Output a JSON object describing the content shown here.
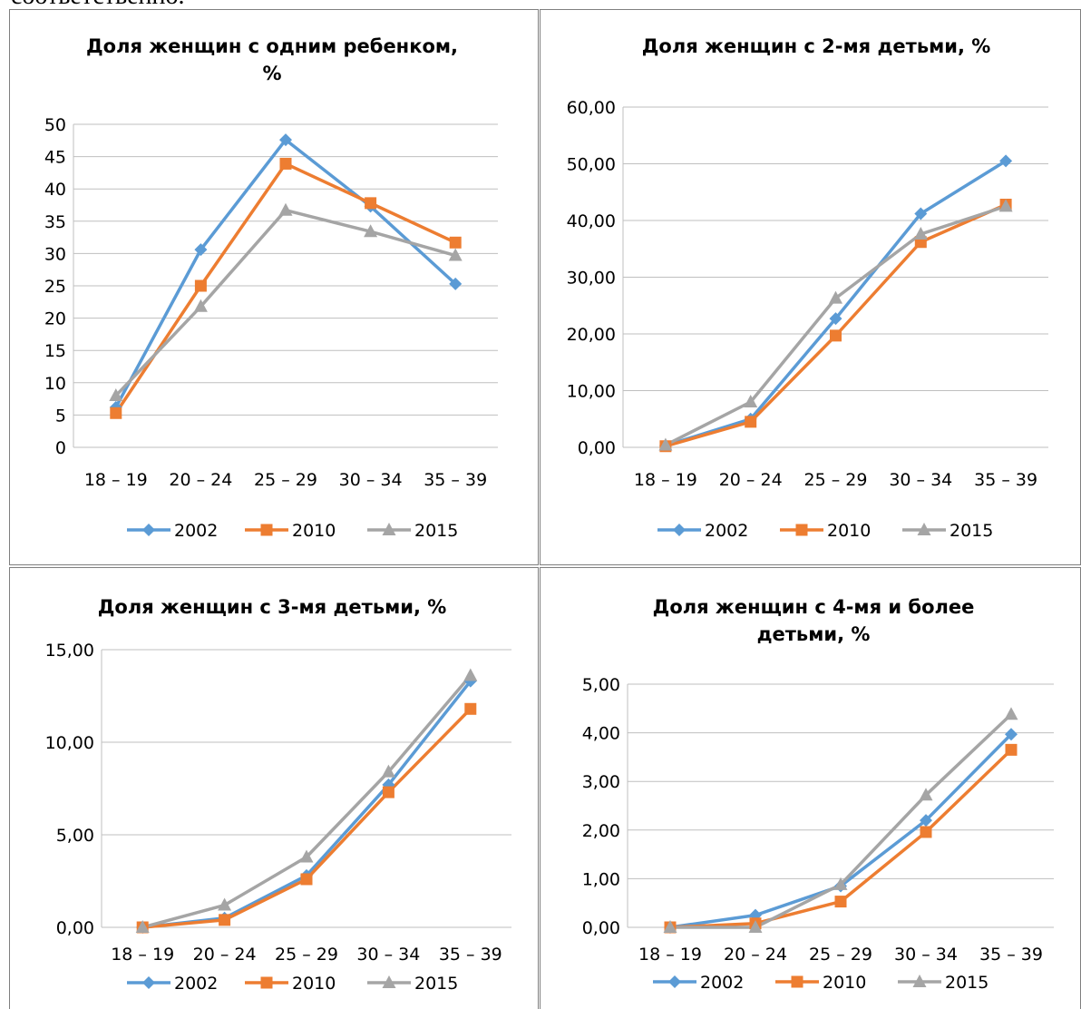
{
  "page_top_text": "соответственно.",
  "colors": {
    "2002": "#5b9bd5",
    "2010": "#ed7d31",
    "2015": "#a5a5a5"
  },
  "chart_data": [
    {
      "type": "line",
      "title_lines": [
        "Доля женщин с одним ребенком,",
        "%"
      ],
      "categories": [
        "18 – 19",
        "20 – 24",
        "25 – 29",
        "30 – 34",
        "35 – 39"
      ],
      "yticks": [
        "0",
        "5",
        "10",
        "15",
        "20",
        "25",
        "30",
        "35",
        "40",
        "45",
        "50"
      ],
      "ylim": [
        0,
        50
      ],
      "series": [
        {
          "name": "2002",
          "values": [
            6.2,
            30.6,
            47.6,
            37.3,
            25.3
          ]
        },
        {
          "name": "2010",
          "values": [
            5.3,
            25.0,
            43.9,
            37.8,
            31.7
          ]
        },
        {
          "name": "2015",
          "values": [
            8.0,
            21.8,
            36.7,
            33.4,
            29.7
          ]
        }
      ],
      "legend_position": "bottom"
    },
    {
      "type": "line",
      "title_lines": [
        "Доля женщин с 2-мя детьми, %"
      ],
      "categories": [
        "18 – 19",
        "20 – 24",
        "25 – 29",
        "30 – 34",
        "35 – 39"
      ],
      "yticks": [
        "0,00",
        "10,00",
        "20,00",
        "30,00",
        "40,00",
        "50,00",
        "60,00"
      ],
      "ylim": [
        0,
        60
      ],
      "series": [
        {
          "name": "2002",
          "values": [
            0.3,
            5.0,
            22.7,
            41.2,
            50.5
          ]
        },
        {
          "name": "2010",
          "values": [
            0.2,
            4.5,
            19.7,
            36.2,
            42.8
          ]
        },
        {
          "name": "2015",
          "values": [
            0.4,
            8.0,
            26.3,
            37.6,
            42.5
          ]
        }
      ],
      "legend_position": "bottom"
    },
    {
      "type": "line",
      "title_lines": [
        "Доля женщин с 3-мя детьми, %"
      ],
      "categories": [
        "18 – 19",
        "20 – 24",
        "25 – 29",
        "30 – 34",
        "35 – 39"
      ],
      "yticks": [
        "0,00",
        "5,00",
        "10,00",
        "15,00"
      ],
      "ylim": [
        0,
        15
      ],
      "series": [
        {
          "name": "2002",
          "values": [
            0.0,
            0.5,
            2.8,
            7.7,
            13.3
          ]
        },
        {
          "name": "2010",
          "values": [
            0.0,
            0.4,
            2.6,
            7.3,
            11.8
          ]
        },
        {
          "name": "2015",
          "values": [
            0.0,
            1.2,
            3.8,
            8.4,
            13.6
          ]
        }
      ],
      "legend_position": "bottom"
    },
    {
      "type": "line",
      "title_lines": [
        "Доля женщин с 4-мя и более",
        "детьми, %"
      ],
      "categories": [
        "18 – 19",
        "20 – 24",
        "25 – 29",
        "30 – 34",
        "35 – 39"
      ],
      "yticks": [
        "0,00",
        "1,00",
        "2,00",
        "3,00",
        "4,00",
        "5,00"
      ],
      "ylim": [
        0,
        5
      ],
      "series": [
        {
          "name": "2002",
          "values": [
            0.0,
            0.25,
            0.85,
            2.2,
            3.97
          ]
        },
        {
          "name": "2010",
          "values": [
            0.0,
            0.08,
            0.53,
            1.96,
            3.65
          ]
        },
        {
          "name": "2015",
          "values": [
            0.0,
            0.0,
            0.88,
            2.72,
            4.38
          ]
        }
      ],
      "legend_position": "bottom"
    }
  ]
}
